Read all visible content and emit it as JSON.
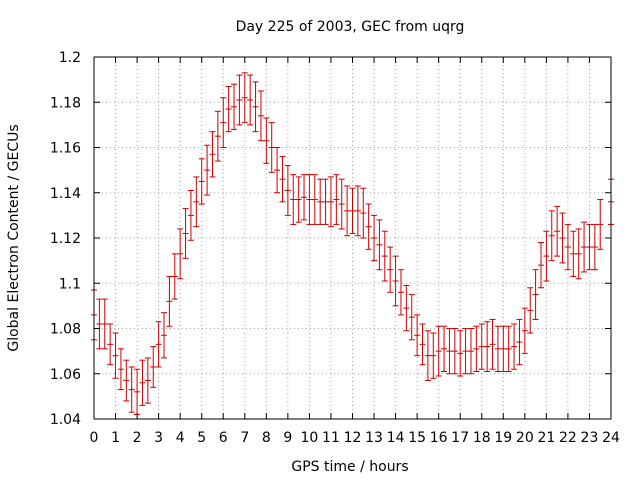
{
  "chart_data": {
    "type": "scatter",
    "title": "Day 225 of 2003, GEC from uqrg",
    "xlabel": "GPS time / hours",
    "ylabel": "Global Electron Content / GECUs",
    "xlim": [
      0,
      24
    ],
    "ylim": [
      1.04,
      1.2
    ],
    "xticks": [
      "0",
      "1",
      "2",
      "3",
      "4",
      "5",
      "6",
      "7",
      "8",
      "9",
      "10",
      "11",
      "12",
      "13",
      "14",
      "15",
      "16",
      "17",
      "18",
      "19",
      "20",
      "21",
      "22",
      "23",
      "24"
    ],
    "yticks": [
      "1.04",
      "1.06",
      "1.08",
      "1.1",
      "1.12",
      "1.14",
      "1.16",
      "1.18",
      "1.2"
    ],
    "grid": true,
    "series": [
      {
        "color": "#cc0000",
        "errorbar": true,
        "points": [
          {
            "x": 0.0,
            "y": 1.086,
            "err": 0.011
          },
          {
            "x": 0.25,
            "y": 1.082,
            "err": 0.011
          },
          {
            "x": 0.5,
            "y": 1.082,
            "err": 0.011
          },
          {
            "x": 0.75,
            "y": 1.073,
            "err": 0.009
          },
          {
            "x": 1.0,
            "y": 1.068,
            "err": 0.01
          },
          {
            "x": 1.25,
            "y": 1.062,
            "err": 0.009
          },
          {
            "x": 1.5,
            "y": 1.057,
            "err": 0.009
          },
          {
            "x": 1.75,
            "y": 1.053,
            "err": 0.01
          },
          {
            "x": 2.0,
            "y": 1.052,
            "err": 0.01
          },
          {
            "x": 2.25,
            "y": 1.056,
            "err": 0.01
          },
          {
            "x": 2.5,
            "y": 1.057,
            "err": 0.01
          },
          {
            "x": 2.75,
            "y": 1.063,
            "err": 0.009
          },
          {
            "x": 3.0,
            "y": 1.073,
            "err": 0.01
          },
          {
            "x": 3.25,
            "y": 1.077,
            "err": 0.01
          },
          {
            "x": 3.5,
            "y": 1.092,
            "err": 0.011
          },
          {
            "x": 3.75,
            "y": 1.103,
            "err": 0.01
          },
          {
            "x": 4.0,
            "y": 1.113,
            "err": 0.011
          },
          {
            "x": 4.25,
            "y": 1.122,
            "err": 0.011
          },
          {
            "x": 4.5,
            "y": 1.13,
            "err": 0.011
          },
          {
            "x": 4.75,
            "y": 1.136,
            "err": 0.011
          },
          {
            "x": 5.0,
            "y": 1.145,
            "err": 0.01
          },
          {
            "x": 5.25,
            "y": 1.15,
            "err": 0.011
          },
          {
            "x": 5.5,
            "y": 1.157,
            "err": 0.01
          },
          {
            "x": 5.75,
            "y": 1.165,
            "err": 0.011
          },
          {
            "x": 6.0,
            "y": 1.171,
            "err": 0.011
          },
          {
            "x": 6.25,
            "y": 1.177,
            "err": 0.01
          },
          {
            "x": 6.5,
            "y": 1.178,
            "err": 0.01
          },
          {
            "x": 6.75,
            "y": 1.181,
            "err": 0.011
          },
          {
            "x": 7.0,
            "y": 1.182,
            "err": 0.011
          },
          {
            "x": 7.25,
            "y": 1.181,
            "err": 0.011
          },
          {
            "x": 7.5,
            "y": 1.178,
            "err": 0.011
          },
          {
            "x": 7.75,
            "y": 1.174,
            "err": 0.011
          },
          {
            "x": 8.0,
            "y": 1.163,
            "err": 0.01
          },
          {
            "x": 8.25,
            "y": 1.16,
            "err": 0.011
          },
          {
            "x": 8.5,
            "y": 1.15,
            "err": 0.01
          },
          {
            "x": 8.75,
            "y": 1.146,
            "err": 0.01
          },
          {
            "x": 9.0,
            "y": 1.141,
            "err": 0.011
          },
          {
            "x": 9.25,
            "y": 1.137,
            "err": 0.011
          },
          {
            "x": 9.5,
            "y": 1.137,
            "err": 0.01
          },
          {
            "x": 9.75,
            "y": 1.138,
            "err": 0.01
          },
          {
            "x": 10.0,
            "y": 1.137,
            "err": 0.011
          },
          {
            "x": 10.25,
            "y": 1.137,
            "err": 0.011
          },
          {
            "x": 10.5,
            "y": 1.136,
            "err": 0.01
          },
          {
            "x": 10.75,
            "y": 1.136,
            "err": 0.01
          },
          {
            "x": 11.0,
            "y": 1.136,
            "err": 0.011
          },
          {
            "x": 11.25,
            "y": 1.137,
            "err": 0.011
          },
          {
            "x": 11.5,
            "y": 1.135,
            "err": 0.011
          },
          {
            "x": 11.75,
            "y": 1.132,
            "err": 0.011
          },
          {
            "x": 12.0,
            "y": 1.132,
            "err": 0.01
          },
          {
            "x": 12.25,
            "y": 1.132,
            "err": 0.011
          },
          {
            "x": 12.5,
            "y": 1.131,
            "err": 0.011
          },
          {
            "x": 12.75,
            "y": 1.125,
            "err": 0.01
          },
          {
            "x": 13.0,
            "y": 1.12,
            "err": 0.01
          },
          {
            "x": 13.25,
            "y": 1.117,
            "err": 0.011
          },
          {
            "x": 13.5,
            "y": 1.112,
            "err": 0.011
          },
          {
            "x": 13.75,
            "y": 1.106,
            "err": 0.01
          },
          {
            "x": 14.0,
            "y": 1.101,
            "err": 0.011
          },
          {
            "x": 14.25,
            "y": 1.096,
            "err": 0.01
          },
          {
            "x": 14.5,
            "y": 1.089,
            "err": 0.01
          },
          {
            "x": 14.75,
            "y": 1.085,
            "err": 0.01
          },
          {
            "x": 15.0,
            "y": 1.077,
            "err": 0.009
          },
          {
            "x": 15.25,
            "y": 1.073,
            "err": 0.009
          },
          {
            "x": 15.5,
            "y": 1.068,
            "err": 0.011
          },
          {
            "x": 15.75,
            "y": 1.068,
            "err": 0.01
          },
          {
            "x": 16.0,
            "y": 1.07,
            "err": 0.011
          },
          {
            "x": 16.25,
            "y": 1.071,
            "err": 0.01
          },
          {
            "x": 16.5,
            "y": 1.07,
            "err": 0.01
          },
          {
            "x": 16.75,
            "y": 1.07,
            "err": 0.01
          },
          {
            "x": 17.0,
            "y": 1.069,
            "err": 0.01
          },
          {
            "x": 17.25,
            "y": 1.07,
            "err": 0.01
          },
          {
            "x": 17.5,
            "y": 1.07,
            "err": 0.01
          },
          {
            "x": 17.75,
            "y": 1.071,
            "err": 0.01
          },
          {
            "x": 18.0,
            "y": 1.072,
            "err": 0.01
          },
          {
            "x": 18.25,
            "y": 1.072,
            "err": 0.011
          },
          {
            "x": 18.5,
            "y": 1.073,
            "err": 0.011
          },
          {
            "x": 18.75,
            "y": 1.071,
            "err": 0.01
          },
          {
            "x": 19.0,
            "y": 1.071,
            "err": 0.01
          },
          {
            "x": 19.25,
            "y": 1.071,
            "err": 0.01
          },
          {
            "x": 19.5,
            "y": 1.072,
            "err": 0.01
          },
          {
            "x": 19.75,
            "y": 1.074,
            "err": 0.01
          },
          {
            "x": 20.0,
            "y": 1.079,
            "err": 0.01
          },
          {
            "x": 20.25,
            "y": 1.088,
            "err": 0.01
          },
          {
            "x": 20.5,
            "y": 1.095,
            "err": 0.011
          },
          {
            "x": 20.75,
            "y": 1.108,
            "err": 0.01
          },
          {
            "x": 21.0,
            "y": 1.112,
            "err": 0.011
          },
          {
            "x": 21.25,
            "y": 1.121,
            "err": 0.011
          },
          {
            "x": 21.5,
            "y": 1.123,
            "err": 0.011
          },
          {
            "x": 21.75,
            "y": 1.12,
            "err": 0.011
          },
          {
            "x": 22.0,
            "y": 1.116,
            "err": 0.01
          },
          {
            "x": 22.25,
            "y": 1.113,
            "err": 0.01
          },
          {
            "x": 22.5,
            "y": 1.113,
            "err": 0.011
          },
          {
            "x": 22.75,
            "y": 1.116,
            "err": 0.011
          },
          {
            "x": 23.0,
            "y": 1.116,
            "err": 0.01
          },
          {
            "x": 23.25,
            "y": 1.116,
            "err": 0.01
          },
          {
            "x": 23.5,
            "y": 1.126,
            "err": 0.011
          },
          {
            "x": 24.0,
            "y": 1.136,
            "err": 0.01
          }
        ]
      }
    ]
  }
}
